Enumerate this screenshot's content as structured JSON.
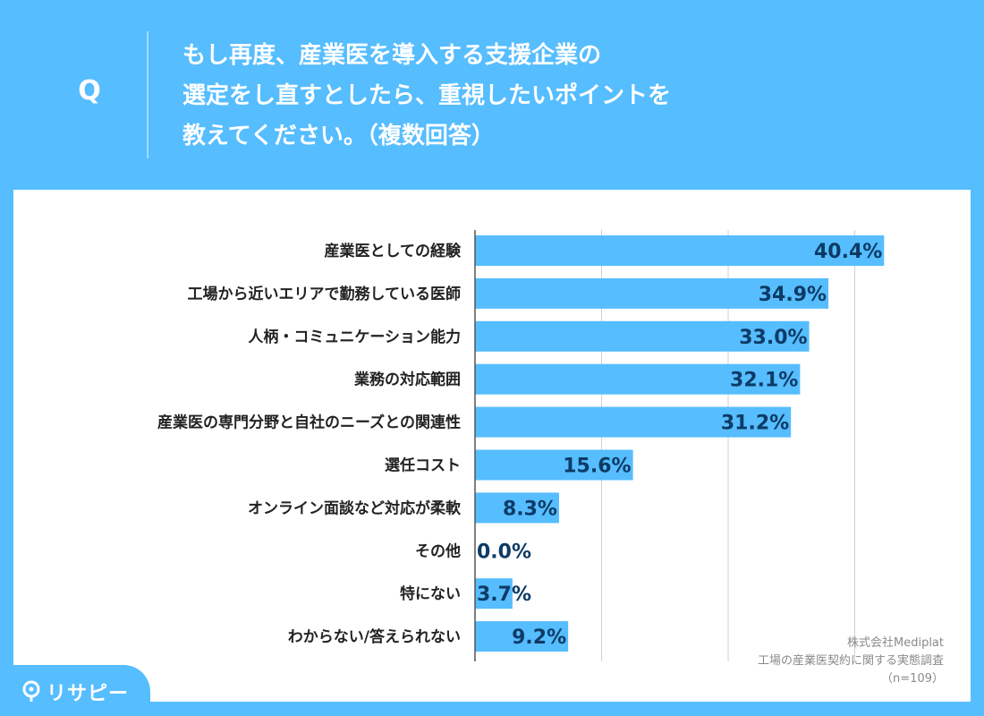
{
  "question": {
    "mark": "Q",
    "text": "もし再度、産業医を導入する支援企業の\n選定をし直すとしたら、重視したいポイントを\n教えてください。（複数回答）"
  },
  "chart_data": {
    "type": "bar",
    "orientation": "horizontal",
    "categories": [
      "産業医としての経験",
      "工場から近いエリアで勤務している医師",
      "人柄・コミュニケーション能力",
      "業務の対応範囲",
      "産業医の専門分野と自社のニーズとの関連性",
      "選任コスト",
      "オンライン面談など対応が柔軟",
      "その他",
      "特にない",
      "わからない/答えられない"
    ],
    "values": [
      40.4,
      34.9,
      33.0,
      32.1,
      31.2,
      15.6,
      8.3,
      0.0,
      3.7,
      9.2
    ],
    "labels": [
      "40.4%",
      "34.9%",
      "33.0%",
      "32.1%",
      "31.2%",
      "15.6%",
      "8.3%",
      "0.0%",
      "3.7%",
      "9.2%"
    ],
    "unit": "%",
    "xlim": [
      0,
      50
    ],
    "gridlines": [
      0,
      12.5,
      25,
      37.5,
      50
    ],
    "grid": true,
    "bar_color": "#56bdff",
    "label_color": "#0d3b66"
  },
  "source": {
    "company": "株式会社Mediplat",
    "survey": "工場の産業医契約に関する実態調査",
    "n": "（n=109）"
  },
  "brand": {
    "name": "リサピー",
    "color": "#56bdff"
  }
}
